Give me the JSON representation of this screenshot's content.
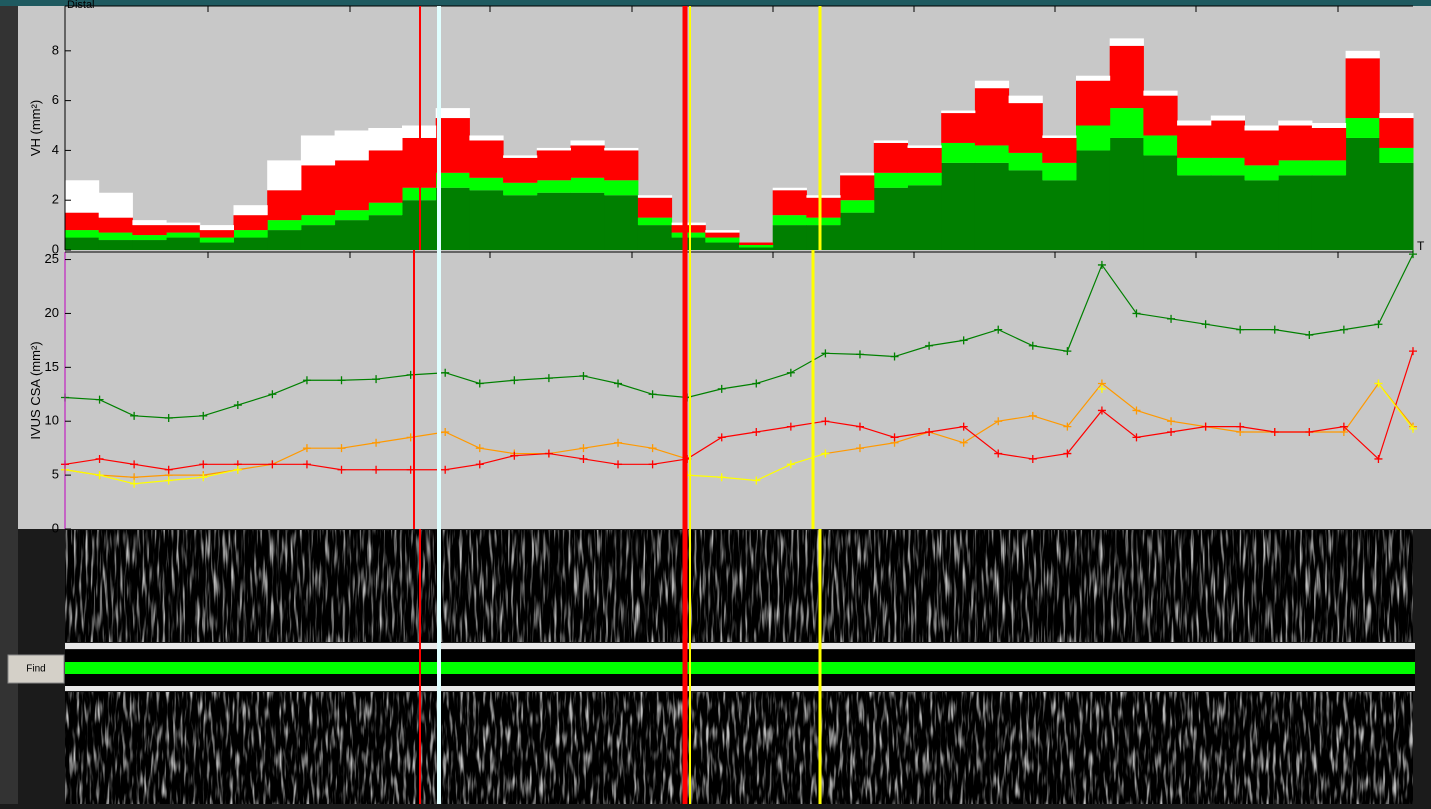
{
  "chart_data": [
    {
      "type": "stacked-bar",
      "ylabel": "VH (mm²)",
      "annotations": [
        "Distal"
      ],
      "categories": [
        null,
        null,
        null,
        null,
        null,
        null,
        null,
        null,
        null,
        null,
        null,
        null,
        null,
        null,
        null,
        null,
        null,
        null,
        null,
        null,
        null,
        null,
        null,
        null,
        null,
        null,
        null,
        null,
        null,
        null,
        null,
        null,
        null,
        null,
        null,
        null,
        null,
        null,
        null,
        null
      ],
      "series": [
        {
          "color": "#007f00",
          "values": [
            0.5,
            0.4,
            0.4,
            0.5,
            0.3,
            0.5,
            0.8,
            1.0,
            1.2,
            1.4,
            2.0,
            2.5,
            2.4,
            2.2,
            2.3,
            2.3,
            2.2,
            1.0,
            0.5,
            0.3,
            0.1,
            1.0,
            1.0,
            1.5,
            2.5,
            2.6,
            3.5,
            3.5,
            3.2,
            2.8,
            4.0,
            4.5,
            3.8,
            3.0,
            3.0,
            2.8,
            3.0,
            3.0,
            4.5,
            3.5
          ]
        },
        {
          "color": "#00ff00",
          "values": [
            0.3,
            0.3,
            0.2,
            0.2,
            0.2,
            0.3,
            0.4,
            0.4,
            0.4,
            0.5,
            0.5,
            0.6,
            0.5,
            0.5,
            0.5,
            0.6,
            0.6,
            0.3,
            0.2,
            0.2,
            0.1,
            0.4,
            0.3,
            0.5,
            0.6,
            0.5,
            0.8,
            0.7,
            0.7,
            0.7,
            1.0,
            1.2,
            0.8,
            0.7,
            0.7,
            0.6,
            0.6,
            0.6,
            0.8,
            0.6
          ]
        },
        {
          "color": "#ff0000",
          "values": [
            0.7,
            0.6,
            0.4,
            0.3,
            0.3,
            0.6,
            1.2,
            2.0,
            2.0,
            2.1,
            2.0,
            2.2,
            1.5,
            1.0,
            1.2,
            1.3,
            1.2,
            0.8,
            0.3,
            0.2,
            0.1,
            1.0,
            0.8,
            1.0,
            1.2,
            1.0,
            1.2,
            2.3,
            2.0,
            1.0,
            1.8,
            2.5,
            1.6,
            1.3,
            1.5,
            1.4,
            1.4,
            1.3,
            2.4,
            1.2
          ]
        },
        {
          "color": "#ffffff",
          "values": [
            1.3,
            1.0,
            0.2,
            0.1,
            0.2,
            0.4,
            1.2,
            1.2,
            1.2,
            0.9,
            0.5,
            0.4,
            0.2,
            0.1,
            0.1,
            0.2,
            0.1,
            0.1,
            0.1,
            0.1,
            0,
            0.1,
            0.1,
            0.1,
            0.1,
            0.1,
            0.1,
            0.3,
            0.3,
            0.1,
            0.2,
            0.3,
            0.2,
            0.2,
            0.2,
            0.2,
            0.2,
            0.2,
            0.3,
            0.2
          ]
        }
      ],
      "ylim": [
        0,
        9.8
      ],
      "yticks": [
        0,
        2,
        4,
        6,
        8
      ]
    },
    {
      "type": "line",
      "ylabel": "IVUS CSA (mm²)",
      "annotations": [
        "T"
      ],
      "marker": "+",
      "categories": [
        null,
        null,
        null,
        null,
        null,
        null,
        null,
        null,
        null,
        null,
        null,
        null,
        null,
        null,
        null,
        null,
        null,
        null,
        null,
        null,
        null,
        null,
        null,
        null,
        null,
        null,
        null,
        null,
        null,
        null,
        null,
        null,
        null,
        null,
        null,
        null,
        null,
        null,
        null,
        null
      ],
      "series": [
        {
          "color": "#008000",
          "values": [
            12.2,
            12,
            10.5,
            10.3,
            10.5,
            11.5,
            12.5,
            13.8,
            13.8,
            13.9,
            14.3,
            14.5,
            13.5,
            13.8,
            14,
            14.2,
            13.5,
            12.5,
            12.2,
            13,
            13.5,
            14.5,
            16.3,
            16.2,
            16,
            17,
            17.5,
            18.5,
            17,
            16.5,
            24.5,
            20,
            19.5,
            19,
            18.5,
            18.5,
            18,
            18.5,
            19,
            25.5
          ]
        },
        {
          "color": "#ff9900",
          "values": [
            5.5,
            5,
            4.8,
            5,
            5,
            5.5,
            6,
            7.5,
            7.5,
            8,
            8.5,
            9,
            7.5,
            7,
            7,
            7.5,
            8,
            7.5,
            6.5,
            null,
            null,
            null,
            7,
            7.5,
            8,
            9,
            8,
            10,
            10.5,
            9.5,
            13.5,
            11,
            10,
            9.5,
            9,
            9,
            9,
            9,
            13.5,
            9.5
          ]
        },
        {
          "color": "#ff0000",
          "values": [
            6,
            6.5,
            6,
            5.5,
            6,
            6,
            6,
            6,
            5.5,
            5.5,
            5.5,
            5.5,
            6,
            6.8,
            7,
            6.5,
            6,
            6,
            6.5,
            8.5,
            9,
            9.5,
            10,
            9.5,
            8.5,
            9,
            9.5,
            7,
            6.5,
            7,
            11,
            8.5,
            9,
            9.5,
            9.5,
            9,
            9,
            9.5,
            6.5,
            16.5
          ]
        },
        {
          "color": "#ffff00",
          "values": [
            5.5,
            5,
            4.2,
            4.5,
            4.8,
            5.5,
            null,
            null,
            null,
            null,
            null,
            null,
            null,
            null,
            null,
            null,
            null,
            null,
            5,
            4.8,
            4.5,
            6,
            7,
            null,
            null,
            null,
            null,
            null,
            null,
            null,
            13,
            null,
            null,
            null,
            null,
            null,
            null,
            null,
            13.5,
            9.3
          ]
        }
      ],
      "ylim": [
        0,
        25.7
      ],
      "yticks": [
        0,
        5,
        10,
        15,
        20,
        25
      ]
    }
  ],
  "find_button": "Find"
}
